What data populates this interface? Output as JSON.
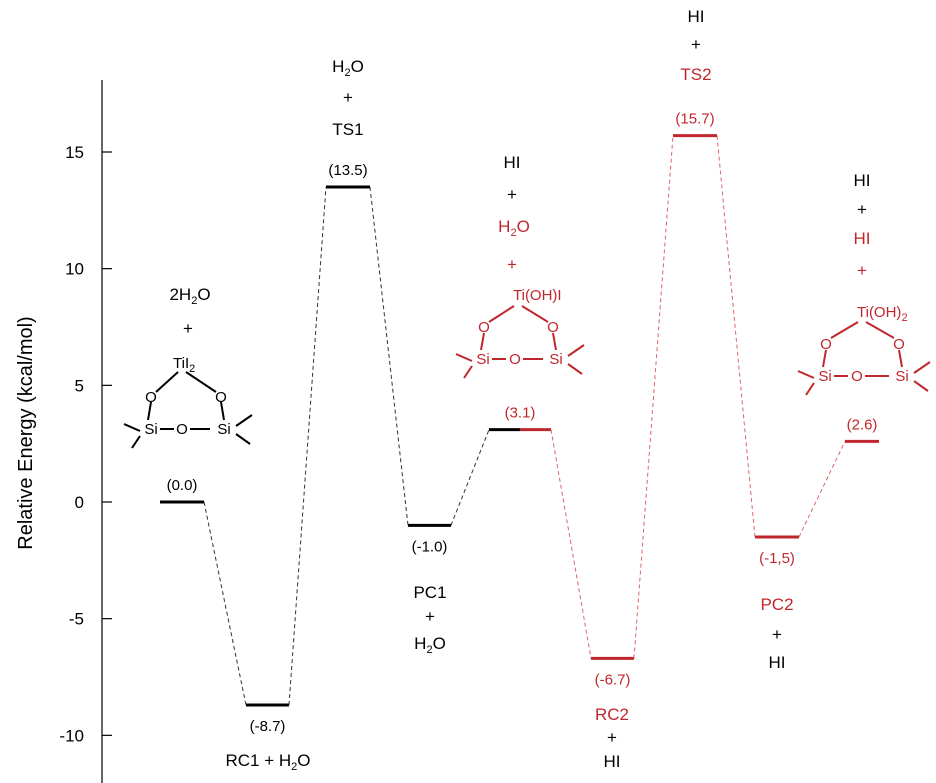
{
  "colors": {
    "black": "#000000",
    "red": "#c0272d",
    "dash_black": "#333333",
    "dash_red": "#e06666"
  },
  "chart_data": {
    "type": "energy-level-diagram",
    "ylabel": "Relative Energy (kcal/mol)",
    "ylim": [
      -11.2,
      18.5
    ],
    "yticks": [
      15,
      10,
      5,
      0,
      -5,
      -10
    ],
    "ytick_labels": [
      "15",
      "10",
      "5",
      "0",
      "-5",
      "-10"
    ],
    "levels": [
      {
        "id": "start",
        "value": 0.0,
        "value_label": "(0.0)",
        "color": "black"
      },
      {
        "id": "rc1",
        "value": -8.7,
        "value_label": "(-8.7)",
        "color": "black"
      },
      {
        "id": "ts1",
        "value": 13.5,
        "value_label": "(13.5)",
        "color": "black"
      },
      {
        "id": "pc1",
        "value": -1.0,
        "value_label": "(-1.0)",
        "color": "black"
      },
      {
        "id": "int",
        "value": 3.1,
        "value_label": "(3.1)",
        "color": "mixed"
      },
      {
        "id": "rc2",
        "value": -6.7,
        "value_label": "(-6.7)",
        "color": "red"
      },
      {
        "id": "ts2",
        "value": 15.7,
        "value_label": "(15.7)",
        "color": "red"
      },
      {
        "id": "pc2",
        "value": -1.5,
        "value_label": "(-1,5)",
        "color": "red"
      },
      {
        "id": "end",
        "value": 2.6,
        "value_label": "(2.6)",
        "color": "red"
      }
    ],
    "connections": [
      [
        "start",
        "rc1",
        "black"
      ],
      [
        "rc1",
        "ts1",
        "black"
      ],
      [
        "ts1",
        "pc1",
        "black"
      ],
      [
        "pc1",
        "int",
        "black"
      ],
      [
        "int",
        "rc2",
        "red"
      ],
      [
        "rc2",
        "ts2",
        "red"
      ],
      [
        "ts2",
        "pc2",
        "red"
      ],
      [
        "pc2",
        "end",
        "red"
      ]
    ]
  },
  "labels": {
    "ts1_top": "H2O",
    "ts1_plus": "+",
    "ts1_name": "TS1",
    "rc1_label": "RC1 + H2O",
    "pc1_name": "PC1",
    "pc1_plus": "+",
    "pc1_h2o": "H2O",
    "rc2_name": "RC2",
    "rc2_plus": "+",
    "rc2_hi": "HI",
    "ts2_hi": "HI",
    "ts2_plus": "+",
    "ts2_name": "TS2",
    "pc2_name": "PC2",
    "pc2_plus": "+",
    "pc2_hi": "HI",
    "m1_top": "2H2O",
    "m1_plus": "+",
    "m2_hi": "HI",
    "m2_plus1": "+",
    "m2_h2o": "H2O",
    "m2_plus2": "+",
    "m3_hi1": "HI",
    "m3_plus1": "+",
    "m3_hi2": "HI",
    "m3_plus2": "+"
  },
  "molecules": {
    "m1": {
      "metal": "TiI2",
      "o_left": "O",
      "o_right": "O",
      "si_left": "Si",
      "o_bridge": "O",
      "si_right": "Si"
    },
    "m2": {
      "metal": "Ti(OH)I",
      "o_left": "O",
      "o_right": "O",
      "si_left": "Si",
      "o_bridge": "O",
      "si_right": "Si"
    },
    "m3": {
      "metal": "Ti(OH)2",
      "o_left": "O",
      "o_right": "O",
      "si_left": "Si",
      "o_bridge": "O",
      "si_right": "Si"
    }
  }
}
